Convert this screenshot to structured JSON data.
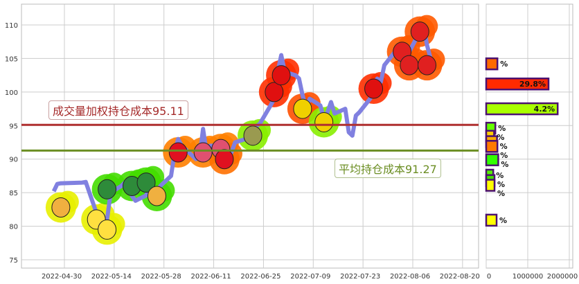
{
  "chart_data": [
    {
      "type": "line",
      "ylim": [
        74,
        113
      ],
      "xlim": [
        "2022-04-18",
        "2022-08-25"
      ],
      "grid": true,
      "yticks": [
        75,
        80,
        85,
        90,
        95,
        100,
        105,
        110
      ],
      "xticks": [
        "2022-04-30",
        "2022-05-14",
        "2022-05-28",
        "2022-06-11",
        "2022-06-25",
        "2022-07-09",
        "2022-07-23",
        "2022-08-06",
        "2022-08-20"
      ],
      "line_color": "#8080e0",
      "series": [
        {
          "x": [
            "2022-04-27",
            "2022-04-28",
            "2022-04-29",
            "2022-05-05",
            "2022-05-06",
            "2022-05-09",
            "2022-05-10",
            "2022-05-11",
            "2022-05-12",
            "2022-05-13",
            "2022-05-16",
            "2022-05-17",
            "2022-05-18",
            "2022-05-19",
            "2022-05-20",
            "2022-05-23",
            "2022-05-24",
            "2022-05-25",
            "2022-05-26",
            "2022-05-27",
            "2022-05-30",
            "2022-05-31",
            "2022-06-01",
            "2022-06-02",
            "2022-06-06",
            "2022-06-07",
            "2022-06-08",
            "2022-06-09",
            "2022-06-10",
            "2022-06-13",
            "2022-06-14",
            "2022-06-15",
            "2022-06-16",
            "2022-06-17",
            "2022-06-20",
            "2022-06-21",
            "2022-06-22",
            "2022-06-24",
            "2022-06-27",
            "2022-06-28",
            "2022-06-29",
            "2022-06-30",
            "2022-07-01",
            "2022-07-04",
            "2022-07-05",
            "2022-07-06",
            "2022-07-07",
            "2022-07-08",
            "2022-07-11",
            "2022-07-12",
            "2022-07-13",
            "2022-07-14",
            "2022-07-15",
            "2022-07-18",
            "2022-07-19",
            "2022-07-20",
            "2022-07-21",
            "2022-07-22",
            "2022-07-25",
            "2022-07-26",
            "2022-07-27",
            "2022-07-28",
            "2022-07-29",
            "2022-08-01",
            "2022-08-02",
            "2022-08-03",
            "2022-08-04",
            "2022-08-05",
            "2022-08-08",
            "2022-08-09",
            "2022-08-10",
            "2022-08-11"
          ],
          "y": [
            85.2,
            86.3,
            86.4,
            86.5,
            86.6,
            82,
            80,
            79.8,
            81,
            85,
            86,
            86.5,
            87,
            84.5,
            83.8,
            84.6,
            86,
            84.5,
            85,
            86,
            87.5,
            91,
            93,
            92,
            90,
            90.2,
            94.5,
            91,
            92,
            92,
            89,
            90,
            91,
            92.5,
            93,
            93.5,
            94.5,
            95.3,
            98,
            99,
            103,
            105.5,
            103,
            102.5,
            102,
            99.5,
            97.5,
            99,
            98,
            96,
            97,
            98.5,
            96.8,
            97.5,
            94,
            93.5,
            96.5,
            97,
            99,
            101,
            102,
            101.5,
            104,
            106,
            107,
            106,
            104.5,
            106,
            109,
            110,
            107,
            105
          ]
        }
      ],
      "markers": [
        {
          "date": "2022-04-29",
          "price": 82.8,
          "color": "#e8f000",
          "icon": "pineapple"
        },
        {
          "date": "2022-05-09",
          "price": 81,
          "color": "#e8f000",
          "icon": "banana"
        },
        {
          "date": "2022-05-12",
          "price": 79.5,
          "color": "#e8f000",
          "icon": "banana"
        },
        {
          "date": "2022-05-12",
          "price": 85.5,
          "color": "#44dd00",
          "icon": "watermelon"
        },
        {
          "date": "2022-05-19",
          "price": 86,
          "color": "#44dd00",
          "icon": "watermelon"
        },
        {
          "date": "2022-05-23",
          "price": 86.5,
          "color": "#44dd00",
          "icon": "watermelon"
        },
        {
          "date": "2022-05-26",
          "price": 84.5,
          "color": "#44dd00",
          "icon": "pineapple"
        },
        {
          "date": "2022-06-01",
          "price": 91,
          "color": "#ff8000",
          "icon": "strawberry"
        },
        {
          "date": "2022-06-08",
          "price": 91,
          "color": "#ff8000",
          "icon": "radish"
        },
        {
          "date": "2022-06-13",
          "price": 91.5,
          "color": "#ff8000",
          "icon": "radish"
        },
        {
          "date": "2022-06-14",
          "price": 90,
          "color": "#ff7000",
          "icon": "strawberry"
        },
        {
          "date": "2022-06-22",
          "price": 93.5,
          "color": "#88ee00",
          "icon": "pear"
        },
        {
          "date": "2022-06-28",
          "price": 100,
          "color": "#ff3000",
          "icon": "apple"
        },
        {
          "date": "2022-06-30",
          "price": 102.5,
          "color": "#ff3000",
          "icon": "apple"
        },
        {
          "date": "2022-07-06",
          "price": 97.5,
          "color": "#ff5000",
          "icon": "corn"
        },
        {
          "date": "2022-07-12",
          "price": 95.5,
          "color": "#88ee00",
          "icon": "corn"
        },
        {
          "date": "2022-07-26",
          "price": 100.5,
          "color": "#ff3000",
          "icon": "apple"
        },
        {
          "date": "2022-08-03",
          "price": 106,
          "color": "#ff5a00",
          "icon": "watermelon-slice"
        },
        {
          "date": "2022-08-05",
          "price": 104,
          "color": "#ff5a00",
          "icon": "watermelon-slice"
        },
        {
          "date": "2022-08-08",
          "price": 109,
          "color": "#ff5a00",
          "icon": "watermelon-slice"
        },
        {
          "date": "2022-08-10",
          "price": 104,
          "color": "#ff5a00",
          "icon": "watermelon-slice"
        }
      ],
      "hlines": [
        {
          "value": 95.11,
          "color": "#b03030",
          "label": "成交量加权持仓成本95.11"
        },
        {
          "value": 91.27,
          "color": "#6b8e23",
          "label": "平均持仓成本91.27"
        }
      ]
    },
    {
      "type": "bar",
      "orientation": "horizontal",
      "xlim": [
        0,
        2100000
      ],
      "xticks": [
        "0",
        "1000000",
        "2000000"
      ],
      "bars": [
        {
          "price": 104.2,
          "value": 270000,
          "color": "#ff6a00",
          "label": "%"
        },
        {
          "price": 101.2,
          "value": 1500000,
          "color": "#ff2a00",
          "label": "29.8%"
        },
        {
          "price": 97.5,
          "value": 1720000,
          "color": "#aaff00",
          "label": "4.2%"
        },
        {
          "price": 94.6,
          "value": 220000,
          "color": "#66ff00",
          "label": "%"
        },
        {
          "price": 93.4,
          "value": 190000,
          "color": "#ffcc00",
          "label": "%"
        },
        {
          "price": 92.6,
          "value": 260000,
          "color": "#ffaa00",
          "label": "%"
        },
        {
          "price": 91.9,
          "value": 270000,
          "color": "#ff7a00",
          "label": "%"
        },
        {
          "price": 89.9,
          "value": 290000,
          "color": "#33ff00",
          "label": "%"
        },
        {
          "price": 87.6,
          "value": 170000,
          "color": "#55ee00",
          "label": "%"
        },
        {
          "price": 86.8,
          "value": 200000,
          "color": "#44dd00",
          "label": "%"
        },
        {
          "price": 86.1,
          "value": 200000,
          "color": "#ffff00",
          "label": "%"
        },
        {
          "price": 80.9,
          "value": 250000,
          "color": "#ffff00",
          "label": "%"
        }
      ]
    }
  ]
}
